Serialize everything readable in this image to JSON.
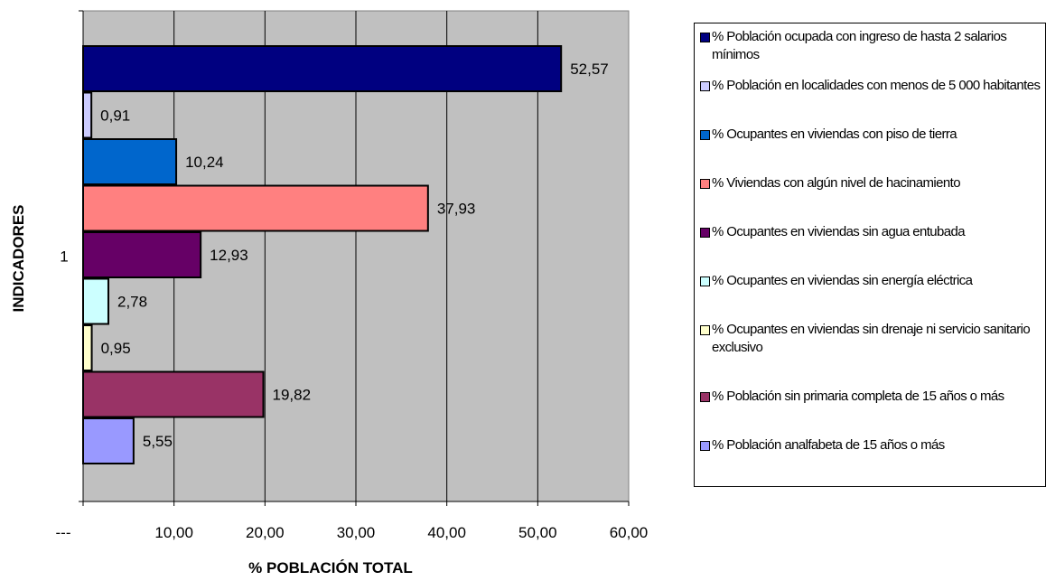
{
  "chart_data": {
    "type": "bar",
    "orientation": "horizontal",
    "categories": [
      "1"
    ],
    "series": [
      {
        "name": "% Población ocupada con ingreso de hasta 2 salarios mínimos",
        "values": [
          52.57
        ],
        "label": "52,57",
        "color": "#000080"
      },
      {
        "name": "% Población en localidades con menos de 5 000 habitantes",
        "values": [
          0.91
        ],
        "label": "0,91",
        "color": "#CCCCFF"
      },
      {
        "name": "% Ocupantes en viviendas con piso de tierra",
        "values": [
          10.24
        ],
        "label": "10,24",
        "color": "#0066CC"
      },
      {
        "name": "% Viviendas con algún nivel de hacinamiento",
        "values": [
          37.93
        ],
        "label": "37,93",
        "color": "#FF8080"
      },
      {
        "name": "% Ocupantes en viviendas sin agua entubada",
        "values": [
          12.93
        ],
        "label": "12,93",
        "color": "#660066"
      },
      {
        "name": "% Ocupantes en viviendas sin energía eléctrica",
        "values": [
          2.78
        ],
        "label": "2,78",
        "color": "#CCFFFF"
      },
      {
        "name": "% Ocupantes en viviendas sin drenaje ni servicio sanitario exclusivo",
        "values": [
          0.95
        ],
        "label": "0,95",
        "color": "#FFFFCC"
      },
      {
        "name": "% Población sin primaria completa de 15 años o más",
        "values": [
          19.82
        ],
        "label": "19,82",
        "color": "#993366"
      },
      {
        "name": "% Población analfabeta de 15 años o más",
        "values": [
          5.55
        ],
        "label": "5,55",
        "color": "#9999FF"
      }
    ],
    "xlabel": "% POBLACIÓN TOTAL",
    "ylabel": "INDICADORES",
    "xlim": [
      0,
      60
    ],
    "x_ticks": [
      {
        "value": 0,
        "label": "---"
      },
      {
        "value": 10,
        "label": "10,00"
      },
      {
        "value": 20,
        "label": "20,00"
      },
      {
        "value": 30,
        "label": "30,00"
      },
      {
        "value": 40,
        "label": "40,00"
      },
      {
        "value": 50,
        "label": "50,00"
      },
      {
        "value": 60,
        "label": "60,00"
      }
    ],
    "plot_background": "#C0C0C0",
    "grid": true,
    "legend_position": "right"
  }
}
